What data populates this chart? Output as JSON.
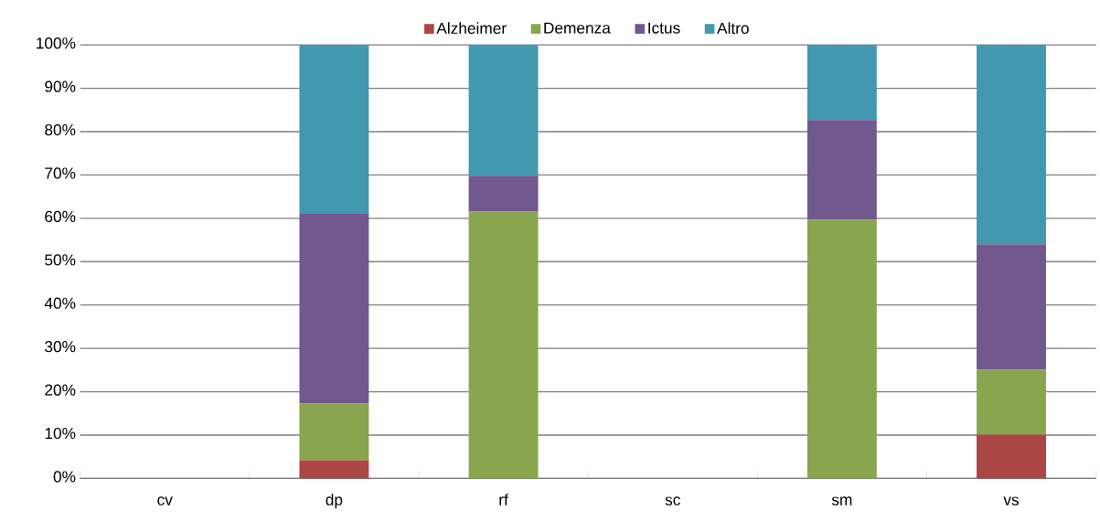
{
  "chart_data": {
    "type": "bar",
    "stacked": true,
    "categories": [
      "cv",
      "dp",
      "rf",
      "sc",
      "sm",
      "vs"
    ],
    "series": [
      {
        "name": "Alzheimer",
        "color": "#aa4643",
        "values": [
          0,
          4.2,
          0,
          0,
          0,
          10.1
        ]
      },
      {
        "name": "Demenza",
        "color": "#89a54e",
        "values": [
          0,
          13.1,
          61.6,
          0,
          59.7,
          15.0
        ]
      },
      {
        "name": "Ictus",
        "color": "#71588f",
        "values": [
          0,
          43.7,
          8.2,
          0,
          23.0,
          28.9
        ]
      },
      {
        "name": "Altro",
        "color": "#4198af",
        "values": [
          0,
          39.0,
          30.2,
          0,
          17.3,
          46.0
        ]
      }
    ],
    "ylim": [
      0,
      100
    ],
    "yticks": [
      {
        "value": 0,
        "label": "0%"
      },
      {
        "value": 10,
        "label": "10%"
      },
      {
        "value": 20,
        "label": "20%"
      },
      {
        "value": 30,
        "label": "30%"
      },
      {
        "value": 40,
        "label": "40%"
      },
      {
        "value": 50,
        "label": "50%"
      },
      {
        "value": 60,
        "label": "60%"
      },
      {
        "value": 70,
        "label": "70%"
      },
      {
        "value": 80,
        "label": "80%"
      },
      {
        "value": 90,
        "label": "90%"
      },
      {
        "value": 100,
        "label": "100%"
      }
    ],
    "grid": "y",
    "legend": "top"
  }
}
